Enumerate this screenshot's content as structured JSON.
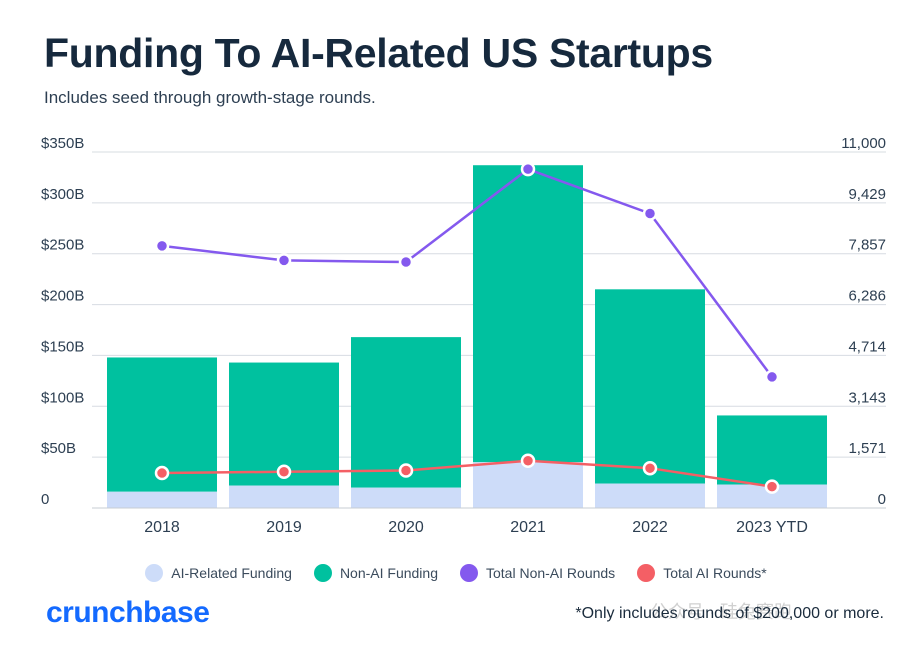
{
  "chart_data": {
    "type": "bar",
    "stacked": true,
    "title": "Funding To AI-Related US Startups",
    "subtitle": "Includes seed through growth-stage rounds.",
    "categories": [
      "2018",
      "2019",
      "2020",
      "2021",
      "2022",
      "2023 YTD"
    ],
    "y_left": {
      "ylim": [
        0,
        350
      ],
      "ticks": [
        0,
        50,
        100,
        150,
        200,
        250,
        300,
        350
      ],
      "tick_labels": [
        "0",
        "$50B",
        "$100B",
        "$150B",
        "$200B",
        "$250B",
        "$300B",
        "$350B"
      ]
    },
    "y_right": {
      "ylim": [
        0,
        11000
      ],
      "ticks": [
        0,
        1571,
        3143,
        4714,
        6286,
        7857,
        9429,
        11000
      ],
      "tick_labels": [
        "0",
        "1,571",
        "3,143",
        "4,714",
        "6,286",
        "7,857",
        "9,429",
        "11,000"
      ]
    },
    "bar_series": [
      {
        "name": "AI-Related Funding",
        "color": "#cddcf9",
        "values": [
          16,
          22,
          20,
          45,
          24,
          23
        ]
      },
      {
        "name": "Non-AI Funding",
        "color": "#00c19f",
        "values": [
          132,
          121,
          148,
          292,
          191,
          68
        ]
      }
    ],
    "line_series": [
      {
        "name": "Total Non-AI Rounds",
        "color": "#8459ee",
        "axis": "right",
        "values": [
          8100,
          7650,
          7600,
          10470,
          9100,
          4050
        ]
      },
      {
        "name": "Total AI Rounds*",
        "color": "#f45f65",
        "axis": "right",
        "values": [
          1080,
          1120,
          1160,
          1460,
          1230,
          660
        ]
      }
    ],
    "grid": true,
    "legend_position": "bottom"
  },
  "legend": [
    {
      "label": "AI-Related Funding",
      "color": "#cddcf9"
    },
    {
      "label": "Non-AI Funding",
      "color": "#00c19f"
    },
    {
      "label": "Total Non-AI Rounds",
      "color": "#8459ee"
    },
    {
      "label": "Total AI Rounds*",
      "color": "#f45f65"
    }
  ],
  "brand": "crunchbase",
  "footnote": "*Only includes rounds of $200,000 or more.",
  "watermark": "公众号 · 硅兔赛跑"
}
